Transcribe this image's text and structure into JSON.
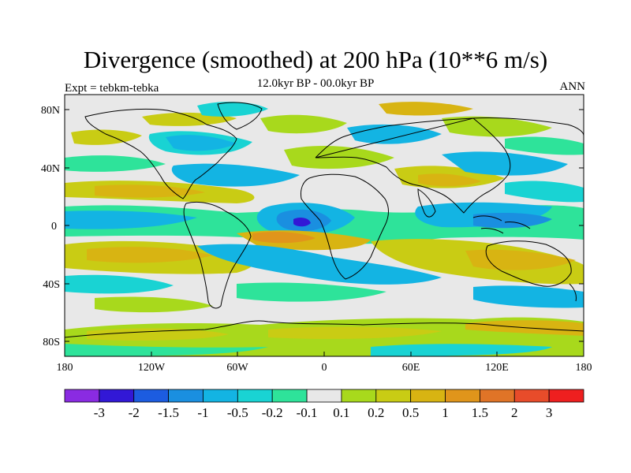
{
  "title": "Divergence (smoothed) at 200 hPa (10**6 m/s)",
  "subtitle_left": "Expt = tebkm-tebka",
  "subtitle_center": "12.0kyr BP - 00.0kyr BP",
  "subtitle_right": "ANN",
  "lat_labels": [
    "80N",
    "40N",
    "0",
    "40S",
    "80S"
  ],
  "lon_labels": [
    "180",
    "120W",
    "60W",
    "0",
    "60E",
    "120E",
    "180"
  ],
  "colorbar": {
    "colors": [
      "#8a2be2",
      "#3218d6",
      "#1c5ce0",
      "#1a8fe0",
      "#13b4e3",
      "#19d3d3",
      "#2ee39a",
      "#e8e8e8",
      "#a8d91c",
      "#c9cc14",
      "#d8b412",
      "#e0951b",
      "#e07427",
      "#e84c2a",
      "#ee1f1f"
    ],
    "labels": [
      "-3",
      "-2",
      "-1.5",
      "-1",
      "-0.5",
      "-0.2",
      "-0.1",
      "0.1",
      "0.2",
      "0.5",
      "1",
      "1.5",
      "2",
      "3"
    ]
  }
}
